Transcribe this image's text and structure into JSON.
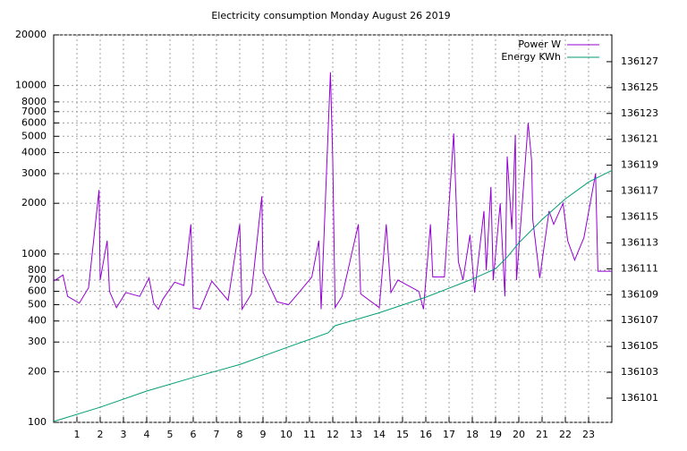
{
  "chart_data": {
    "type": "line",
    "title": "Electricity consumption Monday August 26 2019",
    "xlim": [
      0,
      24
    ],
    "xticks": [
      1,
      2,
      3,
      4,
      5,
      6,
      7,
      8,
      9,
      10,
      11,
      12,
      13,
      14,
      15,
      16,
      17,
      18,
      19,
      20,
      21,
      22,
      23
    ],
    "ylim": [
      100,
      20000
    ],
    "ylog": true,
    "yticks": [
      100,
      200,
      300,
      400,
      500,
      600,
      700,
      800,
      1000,
      2000,
      3000,
      4000,
      5000,
      6000,
      7000,
      8000,
      10000,
      20000
    ],
    "y2lim": [
      136099.13,
      136129.07
    ],
    "y2ticks": [
      136101,
      136103,
      136105,
      136107,
      136109,
      136111,
      136113,
      136115,
      136117,
      136119,
      136121,
      136123,
      136125,
      136127
    ],
    "grid": true,
    "legend": "top right",
    "series": [
      {
        "name": "Power W",
        "color": "#9400d3",
        "x": [
          0,
          0.4,
          0.6,
          1.1,
          1.5,
          1.95,
          2.0,
          2.3,
          2.4,
          2.7,
          3.1,
          3.7,
          4.1,
          4.3,
          4.5,
          4.7,
          5.2,
          5.6,
          5.9,
          6.0,
          6.3,
          6.8,
          7.5,
          8.0,
          8.1,
          8.5,
          8.95,
          9.0,
          9.6,
          10.1,
          10.5,
          11.1,
          11.4,
          11.5,
          11.9,
          12.0,
          12.1,
          12.4,
          13.1,
          13.2,
          14.0,
          14.3,
          14.5,
          14.8,
          15.7,
          15.9,
          16.2,
          16.3,
          16.8,
          17.2,
          17.4,
          17.6,
          17.9,
          18.1,
          18.5,
          18.6,
          18.8,
          18.9,
          19.2,
          19.4,
          19.5,
          19.7,
          19.85,
          19.9,
          20.2,
          20.4,
          20.55,
          20.6,
          20.9,
          21.3,
          21.5,
          21.9,
          22.1,
          22.4,
          22.8,
          23.3,
          23.4,
          24
        ],
        "values": [
          690,
          750,
          560,
          510,
          630,
          2400,
          700,
          1200,
          600,
          480,
          590,
          560,
          720,
          510,
          470,
          540,
          680,
          650,
          1500,
          480,
          470,
          690,
          530,
          1500,
          470,
          580,
          2200,
          780,
          520,
          500,
          580,
          730,
          1200,
          470,
          12000,
          3600,
          480,
          560,
          1500,
          580,
          480,
          1500,
          590,
          700,
          600,
          470,
          1500,
          730,
          730,
          5200,
          900,
          700,
          1300,
          590,
          1800,
          800,
          2500,
          700,
          2000,
          560,
          3800,
          1400,
          5100,
          700,
          2500,
          6000,
          3600,
          1600,
          720,
          1800,
          1500,
          2000,
          1200,
          920,
          1250,
          3000,
          790,
          790
        ]
      },
      {
        "name": "Energy KWh",
        "color": "#009e73",
        "axis": "y2",
        "x": [
          0,
          2,
          4,
          6,
          8,
          10,
          11.8,
          12.1,
          14,
          16,
          17,
          18,
          19,
          19.5,
          20,
          21,
          22,
          23,
          24
        ],
        "values": [
          136099.2,
          136100.3,
          136101.55,
          136102.6,
          136103.6,
          136104.9,
          136106.05,
          136106.6,
          136107.6,
          136108.8,
          136109.5,
          136110.2,
          136111,
          136111.9,
          136113,
          136114.8,
          136116.4,
          136117.7,
          136118.6
        ]
      }
    ]
  }
}
